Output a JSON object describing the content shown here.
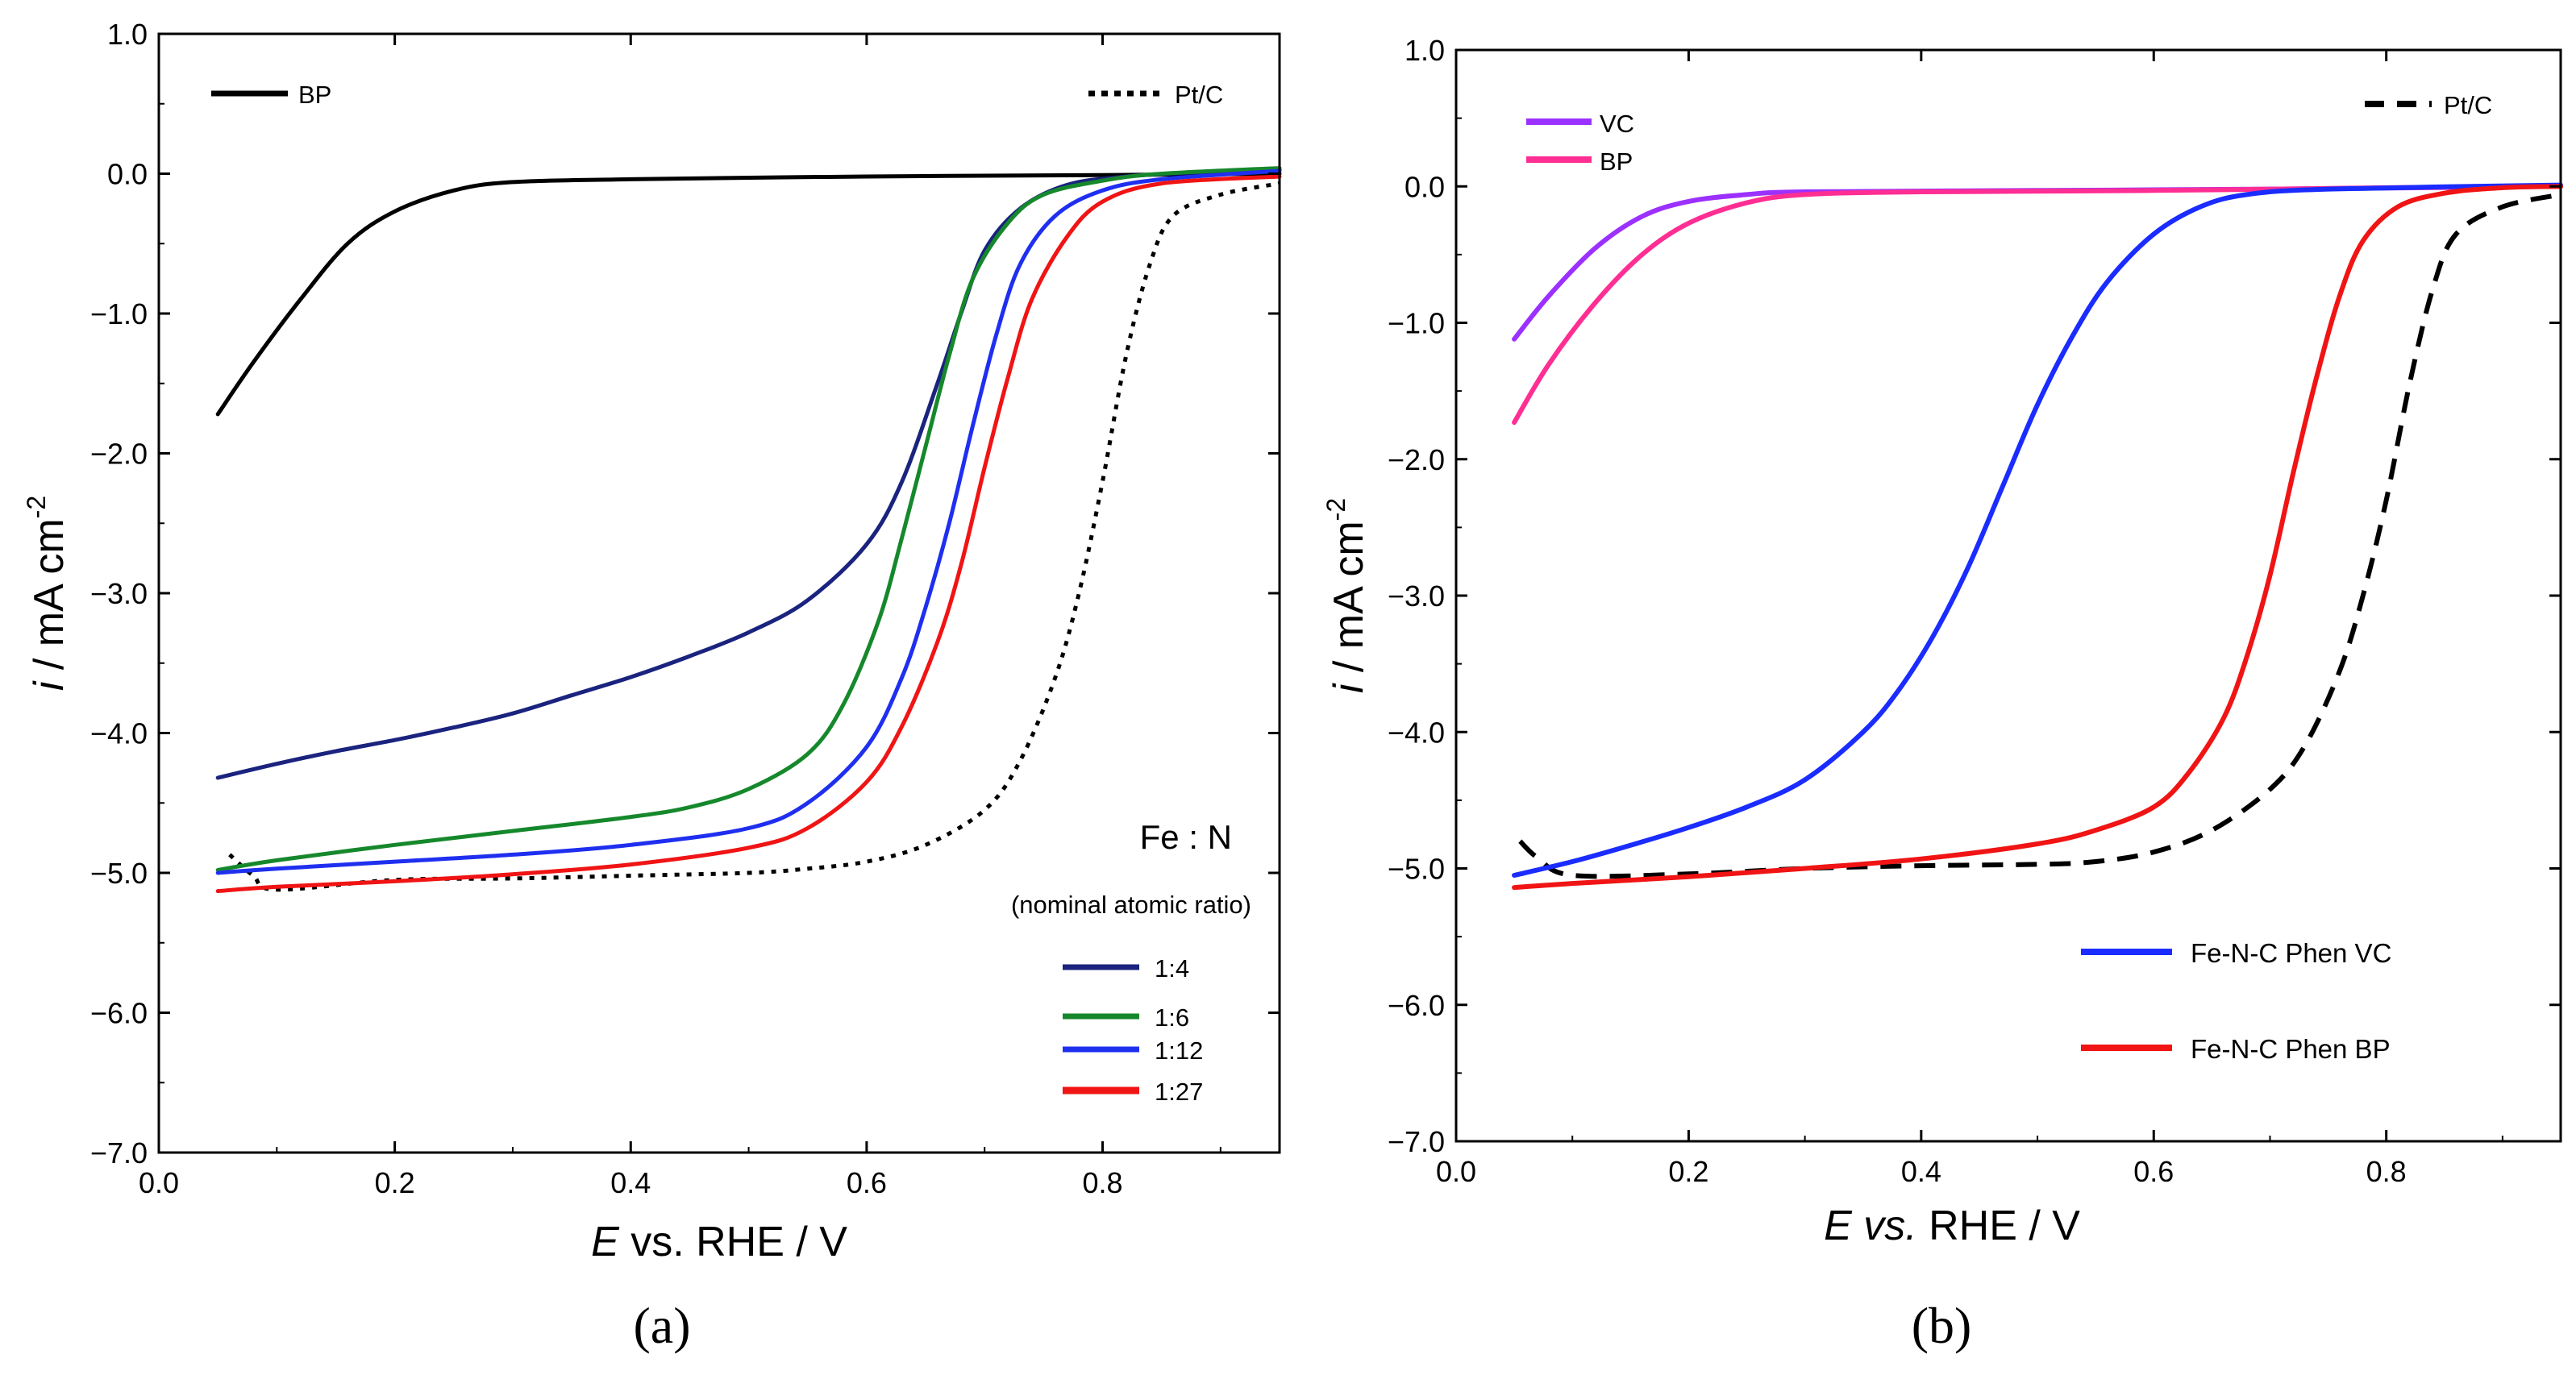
{
  "figure": {
    "panel_a_label": "(a)",
    "panel_b_label": "(b)"
  },
  "chart_data": [
    {
      "type": "line",
      "panel": "a",
      "xlabel_italic": "E",
      "xlabel_rest": " vs. RHE / V",
      "ylabel_italic": "i",
      "ylabel_rest": " / mA cm",
      "ylabel_exp": "-2",
      "xlim": [
        0.0,
        0.95
      ],
      "ylim": [
        -7.0,
        1.0
      ],
      "xticks": [
        0.0,
        0.2,
        0.4,
        0.6,
        0.8
      ],
      "xtick_labels": [
        "0.0",
        "0.2",
        "0.4",
        "0.6",
        "0.8"
      ],
      "yticks": [
        1.0,
        0.0,
        -1.0,
        -2.0,
        -3.0,
        -4.0,
        -5.0,
        -6.0,
        -7.0
      ],
      "ytick_labels": [
        "1.0",
        "0.0",
        "−1.0",
        "−2.0",
        "−3.0",
        "−4.0",
        "−5.0",
        "−6.0",
        "−7.0"
      ],
      "annotation_title": "Fe : N",
      "annotation_subtitle": "(nominal atomic ratio)",
      "series": [
        {
          "name": "BP",
          "color": "#000000",
          "dash": "solid",
          "points": [
            [
              0.05,
              -1.72
            ],
            [
              0.08,
              -1.35
            ],
            [
              0.12,
              -0.9
            ],
            [
              0.16,
              -0.5
            ],
            [
              0.2,
              -0.27
            ],
            [
              0.25,
              -0.12
            ],
            [
              0.3,
              -0.06
            ],
            [
              0.4,
              -0.04
            ],
            [
              0.6,
              -0.02
            ],
            [
              0.8,
              -0.01
            ],
            [
              0.95,
              0.0
            ]
          ]
        },
        {
          "name": "Pt/C",
          "color": "#000000",
          "dash": "dot",
          "points": [
            [
              0.06,
              -4.87
            ],
            [
              0.08,
              -5.02
            ],
            [
              0.1,
              -5.12
            ],
            [
              0.2,
              -5.05
            ],
            [
              0.3,
              -5.04
            ],
            [
              0.4,
              -5.02
            ],
            [
              0.5,
              -5.0
            ],
            [
              0.55,
              -4.97
            ],
            [
              0.6,
              -4.92
            ],
            [
              0.65,
              -4.8
            ],
            [
              0.7,
              -4.55
            ],
            [
              0.73,
              -4.2
            ],
            [
              0.76,
              -3.6
            ],
            [
              0.78,
              -3.0
            ],
            [
              0.8,
              -2.2
            ],
            [
              0.82,
              -1.3
            ],
            [
              0.84,
              -0.65
            ],
            [
              0.86,
              -0.3
            ],
            [
              0.9,
              -0.15
            ],
            [
              0.95,
              -0.07
            ]
          ]
        },
        {
          "name": "1:4",
          "color": "#1a237e",
          "dash": "solid",
          "points": [
            [
              0.05,
              -4.32
            ],
            [
              0.1,
              -4.22
            ],
            [
              0.15,
              -4.13
            ],
            [
              0.2,
              -4.05
            ],
            [
              0.25,
              -3.96
            ],
            [
              0.3,
              -3.86
            ],
            [
              0.35,
              -3.73
            ],
            [
              0.4,
              -3.6
            ],
            [
              0.45,
              -3.45
            ],
            [
              0.5,
              -3.28
            ],
            [
              0.55,
              -3.05
            ],
            [
              0.6,
              -2.65
            ],
            [
              0.63,
              -2.2
            ],
            [
              0.66,
              -1.5
            ],
            [
              0.68,
              -1.0
            ],
            [
              0.7,
              -0.55
            ],
            [
              0.73,
              -0.25
            ],
            [
              0.77,
              -0.08
            ],
            [
              0.82,
              -0.02
            ],
            [
              0.88,
              0.01
            ],
            [
              0.95,
              0.03
            ]
          ]
        },
        {
          "name": "1:6",
          "color": "#16882c",
          "dash": "solid",
          "points": [
            [
              0.05,
              -4.98
            ],
            [
              0.1,
              -4.91
            ],
            [
              0.2,
              -4.8
            ],
            [
              0.3,
              -4.7
            ],
            [
              0.4,
              -4.6
            ],
            [
              0.45,
              -4.53
            ],
            [
              0.5,
              -4.4
            ],
            [
              0.55,
              -4.15
            ],
            [
              0.58,
              -3.8
            ],
            [
              0.61,
              -3.2
            ],
            [
              0.63,
              -2.6
            ],
            [
              0.65,
              -1.95
            ],
            [
              0.67,
              -1.3
            ],
            [
              0.69,
              -0.75
            ],
            [
              0.72,
              -0.35
            ],
            [
              0.75,
              -0.15
            ],
            [
              0.8,
              -0.05
            ],
            [
              0.85,
              0.0
            ],
            [
              0.95,
              0.04
            ]
          ]
        },
        {
          "name": "1:12",
          "color": "#1f2ff0",
          "dash": "solid",
          "points": [
            [
              0.05,
              -5.0
            ],
            [
              0.1,
              -4.97
            ],
            [
              0.2,
              -4.92
            ],
            [
              0.3,
              -4.87
            ],
            [
              0.4,
              -4.8
            ],
            [
              0.5,
              -4.68
            ],
            [
              0.55,
              -4.5
            ],
            [
              0.6,
              -4.1
            ],
            [
              0.63,
              -3.6
            ],
            [
              0.65,
              -3.1
            ],
            [
              0.67,
              -2.5
            ],
            [
              0.69,
              -1.8
            ],
            [
              0.71,
              -1.15
            ],
            [
              0.73,
              -0.65
            ],
            [
              0.76,
              -0.3
            ],
            [
              0.8,
              -0.12
            ],
            [
              0.85,
              -0.04
            ],
            [
              0.95,
              0.02
            ]
          ]
        },
        {
          "name": "1:27",
          "color": "#f01414",
          "dash": "solid",
          "points": [
            [
              0.05,
              -5.13
            ],
            [
              0.1,
              -5.1
            ],
            [
              0.2,
              -5.06
            ],
            [
              0.3,
              -5.01
            ],
            [
              0.4,
              -4.94
            ],
            [
              0.5,
              -4.82
            ],
            [
              0.55,
              -4.68
            ],
            [
              0.6,
              -4.35
            ],
            [
              0.63,
              -3.95
            ],
            [
              0.66,
              -3.35
            ],
            [
              0.68,
              -2.8
            ],
            [
              0.7,
              -2.1
            ],
            [
              0.72,
              -1.45
            ],
            [
              0.74,
              -0.9
            ],
            [
              0.77,
              -0.45
            ],
            [
              0.8,
              -0.2
            ],
            [
              0.85,
              -0.07
            ],
            [
              0.95,
              -0.02
            ]
          ]
        }
      ]
    },
    {
      "type": "line",
      "panel": "b",
      "xlabel_italic": "E vs.",
      "xlabel_rest": " RHE / V",
      "ylabel_italic": "i",
      "ylabel_rest": " / mA cm",
      "ylabel_exp": "-2",
      "xlim": [
        0.0,
        0.95
      ],
      "ylim": [
        -7.0,
        1.0
      ],
      "xticks": [
        0.0,
        0.2,
        0.4,
        0.6,
        0.8
      ],
      "xtick_labels": [
        "0.0",
        "0.2",
        "0.4",
        "0.6",
        "0.8"
      ],
      "yticks": [
        1.0,
        0.0,
        -1.0,
        -2.0,
        -3.0,
        -4.0,
        -5.0,
        -6.0,
        -7.0
      ],
      "ytick_labels": [
        "1.0",
        "0.0",
        "−1.0",
        "−2.0",
        "−3.0",
        "−4.0",
        "−5.0",
        "−6.0",
        "−7.0"
      ],
      "series": [
        {
          "name": "VC",
          "color": "#9b30ff",
          "dash": "solid",
          "points": [
            [
              0.05,
              -1.12
            ],
            [
              0.08,
              -0.8
            ],
            [
              0.12,
              -0.45
            ],
            [
              0.16,
              -0.22
            ],
            [
              0.2,
              -0.11
            ],
            [
              0.25,
              -0.06
            ],
            [
              0.3,
              -0.04
            ],
            [
              0.5,
              -0.03
            ],
            [
              0.7,
              -0.02
            ],
            [
              0.95,
              0.0
            ]
          ]
        },
        {
          "name": "BP",
          "color": "#ff2e93",
          "dash": "solid",
          "points": [
            [
              0.05,
              -1.73
            ],
            [
              0.08,
              -1.3
            ],
            [
              0.12,
              -0.85
            ],
            [
              0.16,
              -0.5
            ],
            [
              0.2,
              -0.27
            ],
            [
              0.25,
              -0.12
            ],
            [
              0.3,
              -0.06
            ],
            [
              0.4,
              -0.04
            ],
            [
              0.6,
              -0.03
            ],
            [
              0.8,
              -0.01
            ],
            [
              0.95,
              0.0
            ]
          ]
        },
        {
          "name": "Pt/C",
          "color": "#000000",
          "dash": "dash",
          "points": [
            [
              0.055,
              -4.8
            ],
            [
              0.07,
              -4.92
            ],
            [
              0.1,
              -5.05
            ],
            [
              0.2,
              -5.04
            ],
            [
              0.3,
              -5.0
            ],
            [
              0.4,
              -4.98
            ],
            [
              0.5,
              -4.97
            ],
            [
              0.55,
              -4.95
            ],
            [
              0.6,
              -4.88
            ],
            [
              0.65,
              -4.72
            ],
            [
              0.7,
              -4.42
            ],
            [
              0.73,
              -4.1
            ],
            [
              0.76,
              -3.55
            ],
            [
              0.78,
              -3.0
            ],
            [
              0.8,
              -2.3
            ],
            [
              0.82,
              -1.45
            ],
            [
              0.84,
              -0.75
            ],
            [
              0.86,
              -0.35
            ],
            [
              0.9,
              -0.15
            ],
            [
              0.95,
              -0.06
            ]
          ]
        },
        {
          "name": "Fe-N-C Phen VC",
          "color": "#1a2cff",
          "dash": "solid",
          "points": [
            [
              0.05,
              -5.05
            ],
            [
              0.1,
              -4.95
            ],
            [
              0.15,
              -4.83
            ],
            [
              0.2,
              -4.7
            ],
            [
              0.25,
              -4.55
            ],
            [
              0.3,
              -4.35
            ],
            [
              0.35,
              -4.0
            ],
            [
              0.38,
              -3.7
            ],
            [
              0.41,
              -3.3
            ],
            [
              0.44,
              -2.8
            ],
            [
              0.47,
              -2.2
            ],
            [
              0.5,
              -1.6
            ],
            [
              0.53,
              -1.1
            ],
            [
              0.56,
              -0.7
            ],
            [
              0.6,
              -0.35
            ],
            [
              0.64,
              -0.15
            ],
            [
              0.68,
              -0.06
            ],
            [
              0.75,
              -0.02
            ],
            [
              0.95,
              0.01
            ]
          ]
        },
        {
          "name": "Fe-N-C Phen BP",
          "color": "#f01414",
          "dash": "solid",
          "points": [
            [
              0.05,
              -5.14
            ],
            [
              0.1,
              -5.11
            ],
            [
              0.2,
              -5.06
            ],
            [
              0.3,
              -5.0
            ],
            [
              0.4,
              -4.93
            ],
            [
              0.5,
              -4.82
            ],
            [
              0.55,
              -4.72
            ],
            [
              0.6,
              -4.55
            ],
            [
              0.63,
              -4.3
            ],
            [
              0.66,
              -3.9
            ],
            [
              0.68,
              -3.45
            ],
            [
              0.7,
              -2.85
            ],
            [
              0.72,
              -2.1
            ],
            [
              0.74,
              -1.4
            ],
            [
              0.76,
              -0.8
            ],
            [
              0.78,
              -0.4
            ],
            [
              0.81,
              -0.15
            ],
            [
              0.85,
              -0.05
            ],
            [
              0.9,
              -0.01
            ],
            [
              0.95,
              0.0
            ]
          ]
        }
      ]
    }
  ]
}
